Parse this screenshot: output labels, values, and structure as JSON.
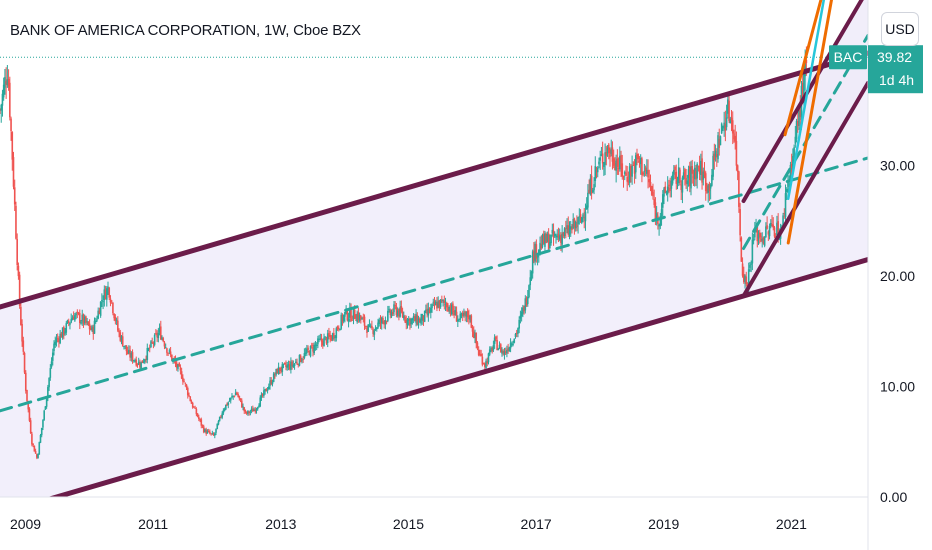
{
  "header": {
    "title": "BANK OF AMERICA CORPORATION, 1W, Cboe BZX"
  },
  "toolbar": {
    "currency": "USD"
  },
  "price_label": {
    "symbol": "BAC",
    "price": "39.82",
    "countdown": "1d 4h"
  },
  "colors": {
    "channel": "#6b1c4a",
    "channel_fill": "#eeeaf9",
    "median": "#26a69a",
    "fan_orange": "#ef6c00",
    "fan_cyan": "#26c6da",
    "candle_up": "#26a69a",
    "candle_down": "#ef5350",
    "price_badge": "#26a69a"
  },
  "chart_data": {
    "type": "candlestick",
    "title": "BANK OF AMERICA CORPORATION, 1W, Cboe BZX",
    "ylim": [
      0,
      45
    ],
    "yticks": [
      {
        "value": 0,
        "label": "0.00"
      },
      {
        "value": 10,
        "label": "10.00"
      },
      {
        "value": 20,
        "label": "20.00"
      },
      {
        "value": 30,
        "label": "30.00"
      }
    ],
    "xlim": [
      2008.6,
      2022.2
    ],
    "xticks": [
      {
        "value": 2009,
        "label": "2009"
      },
      {
        "value": 2011,
        "label": "2011"
      },
      {
        "value": 2013,
        "label": "2013"
      },
      {
        "value": 2015,
        "label": "2015"
      },
      {
        "value": 2017,
        "label": "2017"
      },
      {
        "value": 2019,
        "label": "2019"
      },
      {
        "value": 2021,
        "label": "2021"
      }
    ],
    "last_price": 39.82,
    "price_path": [
      [
        2008.6,
        35
      ],
      [
        2008.72,
        39
      ],
      [
        2008.8,
        30
      ],
      [
        2008.9,
        18
      ],
      [
        2009.0,
        10
      ],
      [
        2009.1,
        5
      ],
      [
        2009.18,
        3.5
      ],
      [
        2009.3,
        8
      ],
      [
        2009.45,
        14
      ],
      [
        2009.6,
        15
      ],
      [
        2009.75,
        16.5
      ],
      [
        2009.9,
        16
      ],
      [
        2010.05,
        15
      ],
      [
        2010.2,
        18
      ],
      [
        2010.3,
        19
      ],
      [
        2010.45,
        15
      ],
      [
        2010.6,
        13
      ],
      [
        2010.8,
        12
      ],
      [
        2010.95,
        13.5
      ],
      [
        2011.1,
        15
      ],
      [
        2011.25,
        13
      ],
      [
        2011.45,
        11
      ],
      [
        2011.6,
        8.5
      ],
      [
        2011.8,
        6
      ],
      [
        2011.95,
        5.5
      ],
      [
        2012.1,
        8
      ],
      [
        2012.3,
        9.5
      ],
      [
        2012.45,
        7.5
      ],
      [
        2012.6,
        8
      ],
      [
        2012.8,
        10
      ],
      [
        2012.95,
        11.5
      ],
      [
        2013.2,
        12
      ],
      [
        2013.4,
        13
      ],
      [
        2013.6,
        14
      ],
      [
        2013.8,
        14.5
      ],
      [
        2014.0,
        16.5
      ],
      [
        2014.2,
        16.5
      ],
      [
        2014.4,
        15
      ],
      [
        2014.6,
        16
      ],
      [
        2014.8,
        17
      ],
      [
        2015.0,
        16
      ],
      [
        2015.2,
        16
      ],
      [
        2015.45,
        17.5
      ],
      [
        2015.6,
        17.5
      ],
      [
        2015.8,
        16
      ],
      [
        2015.95,
        16.5
      ],
      [
        2016.1,
        13
      ],
      [
        2016.2,
        12
      ],
      [
        2016.35,
        14
      ],
      [
        2016.5,
        13
      ],
      [
        2016.7,
        15
      ],
      [
        2016.85,
        18
      ],
      [
        2016.95,
        22
      ],
      [
        2017.1,
        23
      ],
      [
        2017.3,
        23.5
      ],
      [
        2017.5,
        24
      ],
      [
        2017.7,
        25
      ],
      [
        2017.9,
        29
      ],
      [
        2018.1,
        31.5
      ],
      [
        2018.2,
        31
      ],
      [
        2018.4,
        29
      ],
      [
        2018.6,
        30.5
      ],
      [
        2018.75,
        29
      ],
      [
        2018.9,
        25
      ],
      [
        2019.05,
        28
      ],
      [
        2019.2,
        29
      ],
      [
        2019.35,
        28.5
      ],
      [
        2019.55,
        30
      ],
      [
        2019.7,
        28
      ],
      [
        2019.85,
        32
      ],
      [
        2020.0,
        35
      ],
      [
        2020.08,
        34
      ],
      [
        2020.15,
        30
      ],
      [
        2020.22,
        21
      ],
      [
        2020.3,
        19
      ],
      [
        2020.42,
        24
      ],
      [
        2020.55,
        23.5
      ],
      [
        2020.7,
        24.5
      ],
      [
        2020.85,
        24
      ],
      [
        2020.92,
        28
      ],
      [
        2021.0,
        30
      ],
      [
        2021.1,
        34
      ],
      [
        2021.18,
        37
      ],
      [
        2021.25,
        39.5
      ]
    ],
    "annotations": [
      {
        "type": "trendline",
        "name": "channel-upper",
        "points": [
          [
            2008.6,
            17.2
          ],
          [
            2022.2,
            40.2
          ]
        ]
      },
      {
        "type": "trendline",
        "name": "channel-lower",
        "points": [
          [
            2008.6,
            -1.5
          ],
          [
            2022.2,
            21.5
          ]
        ]
      },
      {
        "type": "trendline",
        "name": "channel-median",
        "points": [
          [
            2008.6,
            7.8
          ],
          [
            2022.2,
            30.7
          ]
        ]
      },
      {
        "type": "trendline",
        "name": "sub-channel-upper",
        "points": [
          [
            2020.25,
            26.8
          ],
          [
            2022.2,
            46
          ]
        ]
      },
      {
        "type": "trendline",
        "name": "sub-channel-lower",
        "points": [
          [
            2020.25,
            18.2
          ],
          [
            2022.2,
            37.5
          ]
        ]
      },
      {
        "type": "trendline",
        "name": "sub-channel-median",
        "points": [
          [
            2020.25,
            22.5
          ],
          [
            2022.2,
            41.8
          ]
        ]
      },
      {
        "type": "trendline",
        "name": "fan-orange-1",
        "points": [
          [
            2020.9,
            32.8
          ],
          [
            2021.6,
            48
          ]
        ]
      },
      {
        "type": "trendline",
        "name": "fan-orange-2",
        "points": [
          [
            2020.95,
            23
          ],
          [
            2021.72,
            48
          ]
        ]
      },
      {
        "type": "trendline",
        "name": "fan-cyan",
        "points": [
          [
            2020.95,
            27
          ],
          [
            2021.6,
            48
          ]
        ]
      }
    ]
  }
}
